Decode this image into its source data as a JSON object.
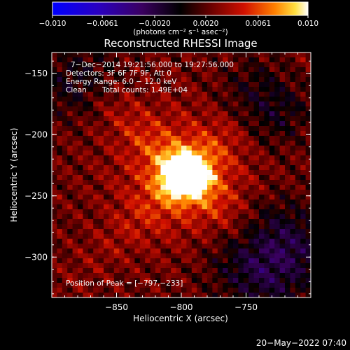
{
  "chart_data": {
    "type": "heatmap",
    "title": "Reconstructed RHESSI Image",
    "xlabel": "Heliocentric X (arcsec)",
    "ylabel": "Heliocentric Y (arcsec)",
    "xlim": [
      -900,
      -700
    ],
    "ylim": [
      -333,
      -133
    ],
    "x_ticks": [
      {
        "value": -850,
        "label": "−850"
      },
      {
        "value": -800,
        "label": "−800"
      },
      {
        "value": -750,
        "label": "−750"
      }
    ],
    "y_ticks": [
      {
        "value": -150,
        "label": "−150"
      },
      {
        "value": -200,
        "label": "−200"
      },
      {
        "value": -250,
        "label": "−250"
      },
      {
        "value": -300,
        "label": "−300"
      }
    ],
    "colorbar": {
      "range": [
        -0.01,
        0.01
      ],
      "ticks": [
        {
          "value": -0.01,
          "label": "−0.010"
        },
        {
          "value": -0.0061,
          "label": "−0.0061"
        },
        {
          "value": -0.002,
          "label": "−0.0020"
        },
        {
          "value": 0.002,
          "label": "0.0020"
        },
        {
          "value": 0.0061,
          "label": "0.0061"
        },
        {
          "value": 0.01,
          "label": "0.010"
        }
      ],
      "unit_label": "(photons cm⁻² s⁻¹ asec⁻²)"
    },
    "annotations": {
      "line1": "7−Dec−2014 19:21:56.000 to 19:27:56.000",
      "line2": "Detectors: 3F 6F 7F 9F, Att 0",
      "line3": "Energy Range: 6.0 − 12.0 keV",
      "line4_a": "Clean",
      "line4_b": "Total counts: 1.49E+04",
      "peak": "Position of Peak = [−797,−233]"
    },
    "peak": {
      "x": -797,
      "y": -233
    },
    "footer": "20−May−2022 07:40"
  }
}
